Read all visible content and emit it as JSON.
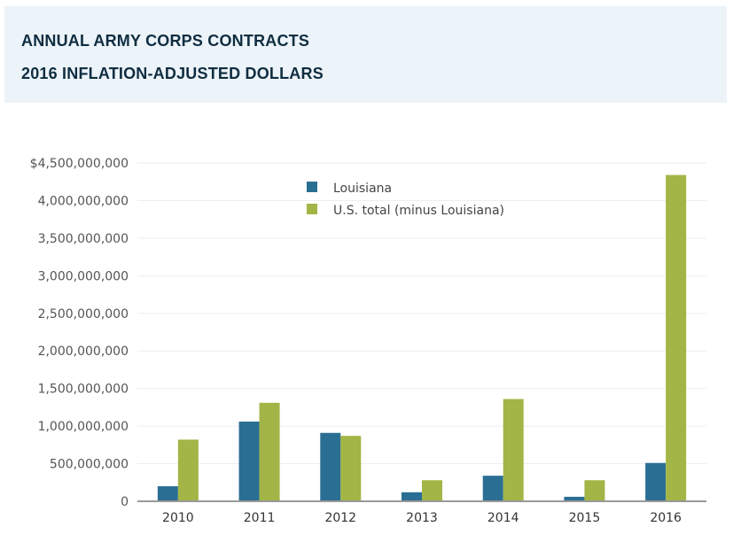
{
  "header": {
    "title": "ANNUAL ARMY CORPS CONTRACTS",
    "subtitle": "2016 INFLATION-ADJUSTED DOLLARS"
  },
  "chart_data": {
    "type": "bar",
    "title": "ANNUAL ARMY CORPS CONTRACTS",
    "subtitle": "2016 INFLATION-ADJUSTED DOLLARS",
    "xlabel": "",
    "ylabel": "",
    "categories": [
      "2010",
      "2011",
      "2012",
      "2013",
      "2014",
      "2015",
      "2016"
    ],
    "series": [
      {
        "name": "Louisiana",
        "color": "#2a6e94",
        "values": [
          200000000,
          1060000000,
          910000000,
          120000000,
          340000000,
          60000000,
          510000000
        ]
      },
      {
        "name": "U.S. total (minus Louisiana)",
        "color": "#a2b546",
        "values": [
          820000000,
          1310000000,
          870000000,
          280000000,
          1360000000,
          280000000,
          4340000000
        ]
      }
    ],
    "ylim": [
      0,
      4500000000
    ],
    "yticks": [
      0,
      500000000,
      1000000000,
      1500000000,
      2000000000,
      2500000000,
      3000000000,
      3500000000,
      4000000000,
      4500000000
    ],
    "ytick_labels": [
      "0",
      "500,000,000",
      "1,000,000,000",
      "1,500,000,000",
      "2,000,000,000",
      "2,500,000,000",
      "3,000,000,000",
      "3,500,000,000",
      "4,000,000,000",
      "$4,500,000,000"
    ],
    "grid": true,
    "legend_position": "top-center"
  }
}
